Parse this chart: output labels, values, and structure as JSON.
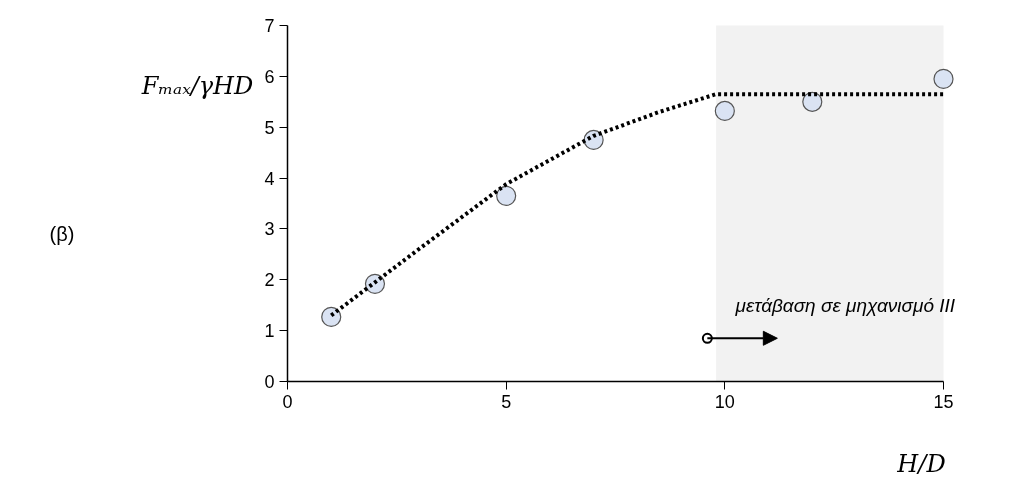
{
  "chart_data": {
    "type": "scatter",
    "xlabel": "H/D",
    "ylabel": "Fₘₐₓ/γHD",
    "xlim": [
      0,
      15
    ],
    "ylim": [
      0,
      7
    ],
    "xticks": [
      0,
      5,
      10,
      15
    ],
    "yticks": [
      0,
      1,
      2,
      3,
      4,
      5,
      6,
      7
    ],
    "grid": false,
    "marker": "circle",
    "series": [
      {
        "color": "#dae3f3",
        "x": [
          1,
          2,
          5,
          7,
          10,
          12,
          15
        ],
        "values": [
          1.27,
          1.92,
          3.65,
          4.75,
          5.32,
          5.5,
          5.95
        ]
      },
      {
        "type": "line",
        "line_style": "dotted",
        "marker": "none",
        "color": "#000000",
        "x": [
          1,
          2,
          3,
          5,
          7,
          8.5,
          9.8,
          15
        ],
        "values": [
          1.3,
          1.95,
          2.6,
          3.88,
          4.83,
          5.3,
          5.65,
          5.65
        ]
      }
    ],
    "bands": [
      {
        "axis": "x",
        "from": 9.8,
        "to": 15,
        "color": "#f2f2f2"
      }
    ],
    "annotations": [
      "(β)",
      {
        "text": "μετάβαση σε μηχανισμό III",
        "x": 9.6,
        "y": 0.85
      }
    ]
  }
}
